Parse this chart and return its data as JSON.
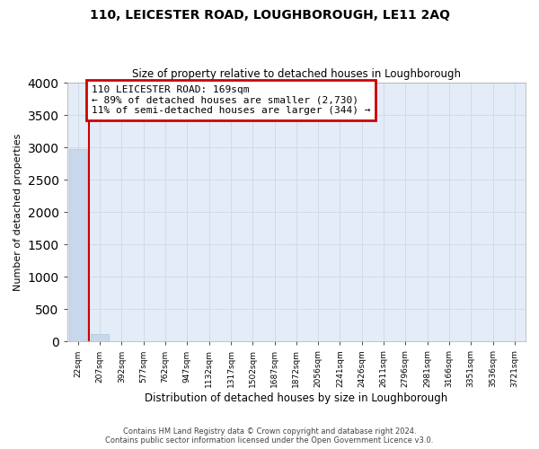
{
  "title": "110, LEICESTER ROAD, LOUGHBOROUGH, LE11 2AQ",
  "subtitle": "Size of property relative to detached houses in Loughborough",
  "xlabel": "Distribution of detached houses by size in Loughborough",
  "ylabel": "Number of detached properties",
  "categories": [
    "22sqm",
    "207sqm",
    "392sqm",
    "577sqm",
    "762sqm",
    "947sqm",
    "1132sqm",
    "1317sqm",
    "1502sqm",
    "1687sqm",
    "1872sqm",
    "2056sqm",
    "2241sqm",
    "2426sqm",
    "2611sqm",
    "2796sqm",
    "2981sqm",
    "3166sqm",
    "3351sqm",
    "3536sqm",
    "3721sqm"
  ],
  "values": [
    2980,
    110,
    0,
    0,
    0,
    0,
    0,
    0,
    0,
    0,
    0,
    0,
    0,
    0,
    0,
    0,
    0,
    0,
    0,
    0,
    0
  ],
  "bar_color": "#c8d8ea",
  "bar_edgecolor": "#b0c4d8",
  "vline_color": "#cc0000",
  "vline_x": 0.5,
  "ylim": [
    0,
    4000
  ],
  "yticks": [
    0,
    500,
    1000,
    1500,
    2000,
    2500,
    3000,
    3500,
    4000
  ],
  "annotation_line1": "110 LEICESTER ROAD: 169sqm",
  "annotation_line2": "← 89% of detached houses are smaller (2,730)",
  "annotation_line3": "11% of semi-detached houses are larger (344) →",
  "annotation_box_edgecolor": "#cc0000",
  "footer_line1": "Contains HM Land Registry data © Crown copyright and database right 2024.",
  "footer_line2": "Contains public sector information licensed under the Open Government Licence v3.0.",
  "grid_color": "#d0daea",
  "bg_color": "#e4ecf7",
  "title_fontsize": 10,
  "subtitle_fontsize": 8.5,
  "ylabel_fontsize": 8,
  "xlabel_fontsize": 8.5,
  "tick_fontsize": 6.5,
  "annot_fontsize": 8,
  "footer_fontsize": 6
}
